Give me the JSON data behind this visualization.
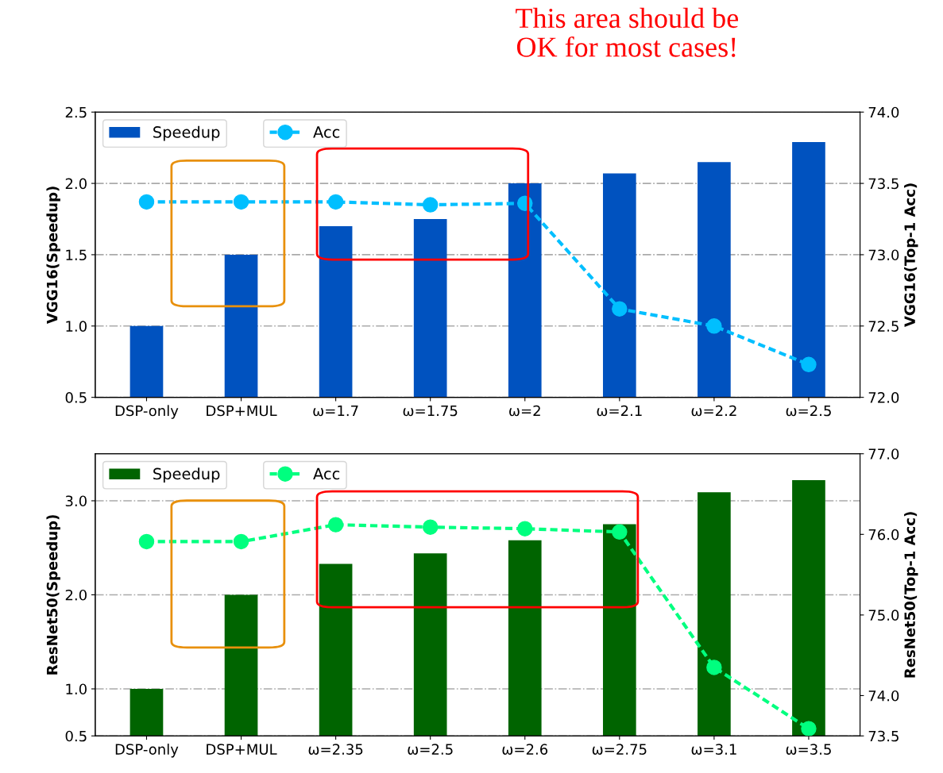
{
  "chart_data": [
    {
      "type": "bar",
      "categories": [
        "DSP-only",
        "DSP+MUL",
        "ω=1.7",
        "ω=1.75",
        "ω=2",
        "ω=2.1",
        "ω=2.2",
        "ω=2.5"
      ],
      "ylabel": "VGG16(Speedup)",
      "y2label": "VGG16(Top-1 Acc)",
      "ylim": [
        0.5,
        2.5
      ],
      "yticks": [
        {
          "value": 0.5,
          "label": "0.5"
        },
        {
          "value": 1,
          "label": "1.0"
        },
        {
          "value": 1.5,
          "label": "1.5"
        },
        {
          "value": 2,
          "label": "2.0"
        },
        {
          "value": 2.5,
          "label": "2.5"
        }
      ],
      "y2lim": [
        72.0,
        74.0
      ],
      "y2ticks": [
        {
          "value": 72,
          "label": "72.0"
        },
        {
          "value": 72.5,
          "label": "72.5"
        },
        {
          "value": 73,
          "label": "73.0"
        },
        {
          "value": 73.5,
          "label": "73.5"
        },
        {
          "value": 74,
          "label": "74.0"
        }
      ],
      "grid": "y",
      "legend": "top left",
      "annotations": [
        "This area should be\nOK for most cases!"
      ],
      "series": [
        {
          "name": "Speedup",
          "color": "#0052bf",
          "values": [
            1.0,
            1.5,
            1.7,
            1.75,
            2.0,
            2.07,
            2.15,
            2.29
          ]
        },
        {
          "name": "Acc",
          "type": "line",
          "axis": "y2",
          "color": "#00bfff",
          "marker": "circle",
          "line_style": "dashed",
          "values": [
            73.37,
            73.37,
            73.37,
            73.35,
            73.36,
            72.62,
            72.5,
            72.23
          ]
        }
      ]
    },
    {
      "type": "bar",
      "categories": [
        "DSP-only",
        "DSP+MUL",
        "ω=2.35",
        "ω=2.5",
        "ω=2.6",
        "ω=2.75",
        "ω=3.1",
        "ω=3.5"
      ],
      "ylabel": "ResNet50(Speedup)",
      "y2label": "ResNet50(Top-1 Acc)",
      "ylim": [
        0.5,
        3.5
      ],
      "yticks": [
        {
          "value": 0.5,
          "label": "0.5"
        },
        {
          "value": 1,
          "label": "1.0"
        },
        {
          "value": 2,
          "label": "2.0"
        },
        {
          "value": 3,
          "label": "3.0"
        }
      ],
      "y2lim": [
        73.5,
        77.0
      ],
      "y2ticks": [
        {
          "value": 73.5,
          "label": "73.5"
        },
        {
          "value": 74,
          "label": "74.0"
        },
        {
          "value": 75,
          "label": "75.0"
        },
        {
          "value": 76,
          "label": "76.0"
        },
        {
          "value": 77,
          "label": "77.0"
        }
      ],
      "grid": "y",
      "legend": "top left",
      "series": [
        {
          "name": "Speedup",
          "color": "#006400",
          "values": [
            1.0,
            2.0,
            2.33,
            2.44,
            2.58,
            2.75,
            3.09,
            3.22
          ]
        },
        {
          "name": "Acc",
          "type": "line",
          "axis": "y2",
          "color": "#00ff7f",
          "marker": "circle",
          "line_style": "dashed",
          "values": [
            75.91,
            75.91,
            76.12,
            76.09,
            76.07,
            76.03,
            74.35,
            73.59
          ]
        }
      ]
    }
  ]
}
